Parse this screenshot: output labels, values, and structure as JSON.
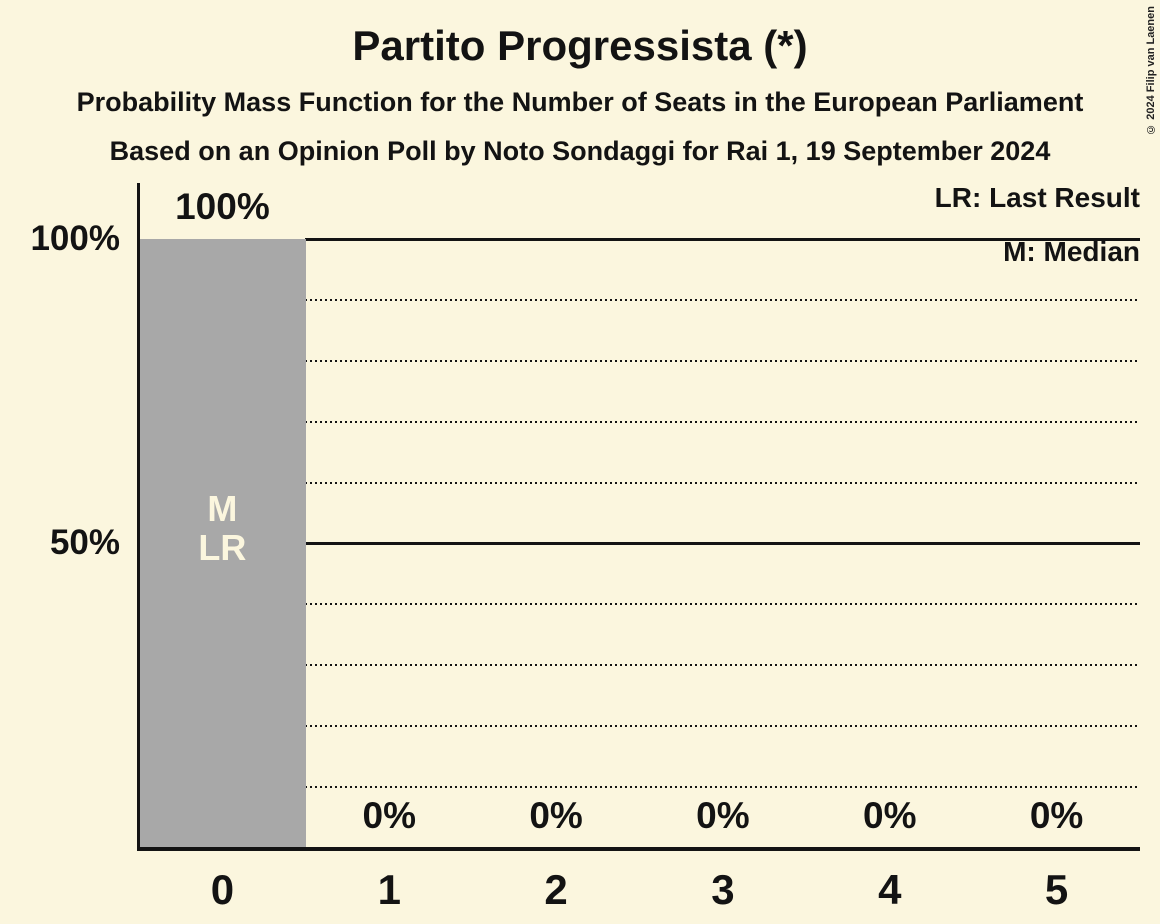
{
  "title": "Partito Progressista (*)",
  "subtitle": "Probability Mass Function for the Number of Seats in the European Parliament",
  "source_line": "Based on an Opinion Poll by Noto Sondaggi for Rai 1, 19 September 2024",
  "copyright": "© 2024 Filip van Laenen",
  "legend": {
    "last_result": "LR: Last Result",
    "median": "M: Median"
  },
  "colors": {
    "background": "#FBF6DE",
    "bar": "#A8A8A8",
    "ink": "#131313"
  },
  "chart_data": {
    "type": "bar",
    "title": "Partito Progressista (*)",
    "xlabel": "Number of Seats",
    "ylabel": "Probability",
    "categories": [
      0,
      1,
      2,
      3,
      4,
      5
    ],
    "x_tick_labels": [
      "0",
      "1",
      "2",
      "3",
      "4",
      "5"
    ],
    "values": [
      100,
      0,
      0,
      0,
      0,
      0
    ],
    "value_labels": [
      "100%",
      "0%",
      "0%",
      "0%",
      "0%",
      "0%"
    ],
    "ylim": [
      0,
      100
    ],
    "y_ticks": [
      {
        "value": 100,
        "label": "100%"
      },
      {
        "value": 50,
        "label": "50%"
      }
    ],
    "gridlines": {
      "solid": [
        100,
        50
      ],
      "dotted": [
        90,
        80,
        70,
        60,
        40,
        30,
        20,
        10
      ]
    },
    "annotations": {
      "median_seats": 0,
      "median_symbol": "M",
      "last_result_seats": 0,
      "last_result_symbol": "LR"
    },
    "legend_position": "top-right",
    "bar_color": "#A8A8A8"
  }
}
